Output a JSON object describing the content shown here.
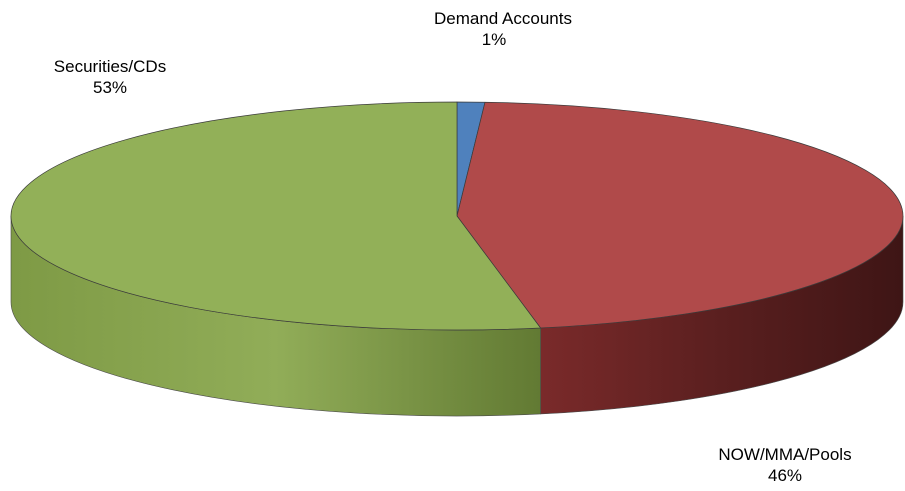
{
  "chart_data": {
    "type": "pie",
    "style": "3d",
    "slices": [
      {
        "label": "Demand Accounts",
        "value": 1,
        "value_label": "1%",
        "color": "#4f81bd",
        "side_color": "#2e4d72"
      },
      {
        "label": "NOW/MMA/Pools",
        "value": 46,
        "value_label": "46%",
        "color": "#b04a4a",
        "side_color": "#5e2020"
      },
      {
        "label": "Securities/CDs",
        "value": 53,
        "value_label": "53%",
        "color": "#92b058",
        "side_color": "#6d8a3e"
      }
    ],
    "start_angle_deg": 0,
    "legend": "none"
  }
}
